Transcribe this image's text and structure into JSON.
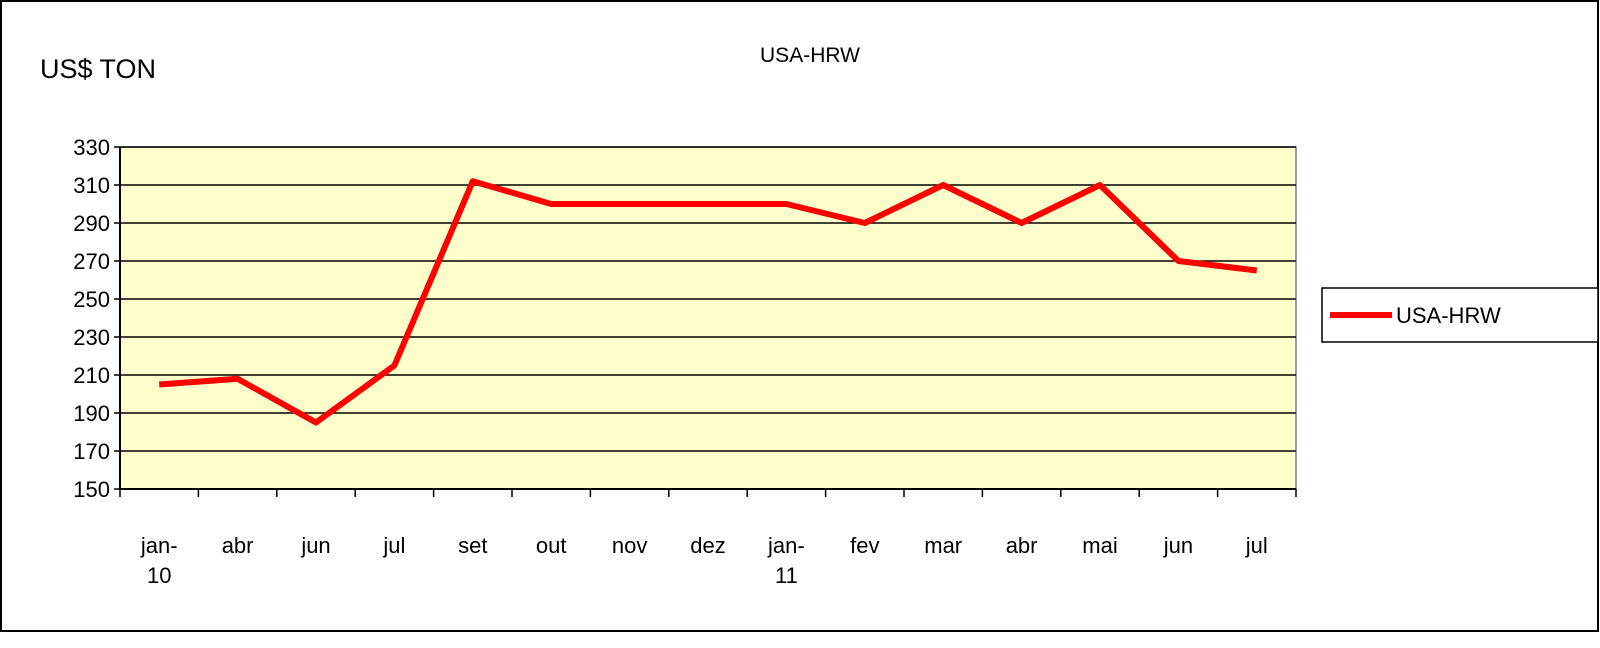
{
  "chart_data": {
    "type": "line",
    "title": "USA-HRW",
    "y_label": "US$ TON",
    "categories": [
      "jan-10",
      "abr",
      "jun",
      "jul",
      "set",
      "out",
      "nov",
      "dez",
      "jan-11",
      "fev",
      "mar",
      "abr",
      "mai",
      "jun",
      "jul"
    ],
    "series": [
      {
        "name": "USA-HRW",
        "color": "#ff0000",
        "values": [
          205,
          208,
          185,
          215,
          312,
          300,
          300,
          300,
          300,
          290,
          310,
          290,
          310,
          270,
          265
        ]
      }
    ],
    "ylim": [
      150,
      330
    ],
    "yticks": [
      150,
      170,
      190,
      210,
      230,
      250,
      270,
      290,
      310,
      330
    ],
    "grid": true,
    "legend": "right"
  }
}
